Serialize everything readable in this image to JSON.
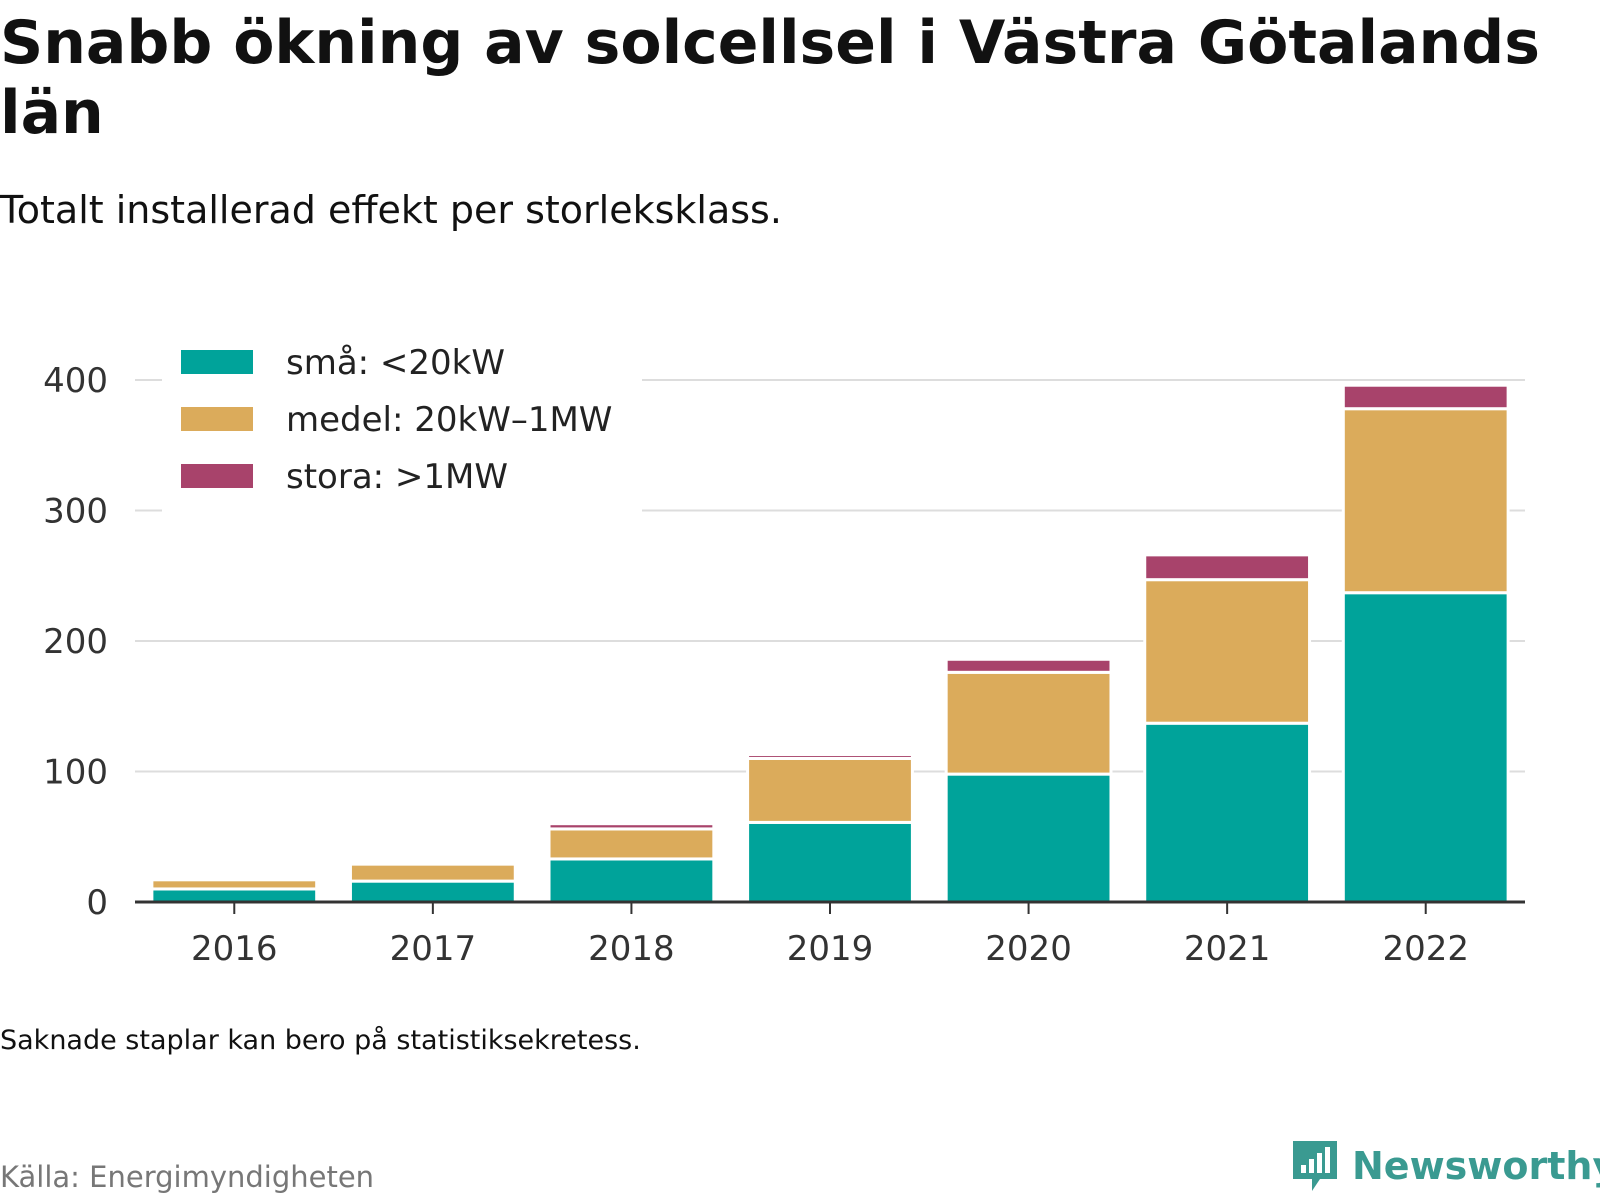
{
  "title": "Snabb ökning av solcellsel i Västra Götalands län",
  "subtitle": "Totalt installerad effekt per storleksklass.",
  "note": "Saknade staplar kan bero på statistiksekretess.",
  "source": "Källa: Energimyndigheten",
  "brand": {
    "name": "Newsworthy",
    "icon": "newsworthy-logo-icon",
    "color": "#3a9a91"
  },
  "chart_data": {
    "type": "bar",
    "stacked": true,
    "categories": [
      "2016",
      "2017",
      "2018",
      "2019",
      "2020",
      "2021",
      "2022"
    ],
    "series": [
      {
        "name": "små: <20kW",
        "color": "#00a39a",
        "values": [
          10,
          16,
          33,
          61,
          98,
          137,
          237
        ]
      },
      {
        "name": "medel: 20kW–1MW",
        "color": "#dbab5b",
        "values": [
          7,
          13,
          23,
          49,
          78,
          110,
          141
        ]
      },
      {
        "name": "stora: >1MW",
        "color": "#a8436b",
        "values": [
          0,
          0,
          4,
          3,
          10,
          19,
          18
        ]
      }
    ],
    "ylim": [
      0,
      400
    ],
    "yticks": [
      0,
      100,
      200,
      300,
      400
    ],
    "grid": true,
    "legend": "top-left"
  }
}
